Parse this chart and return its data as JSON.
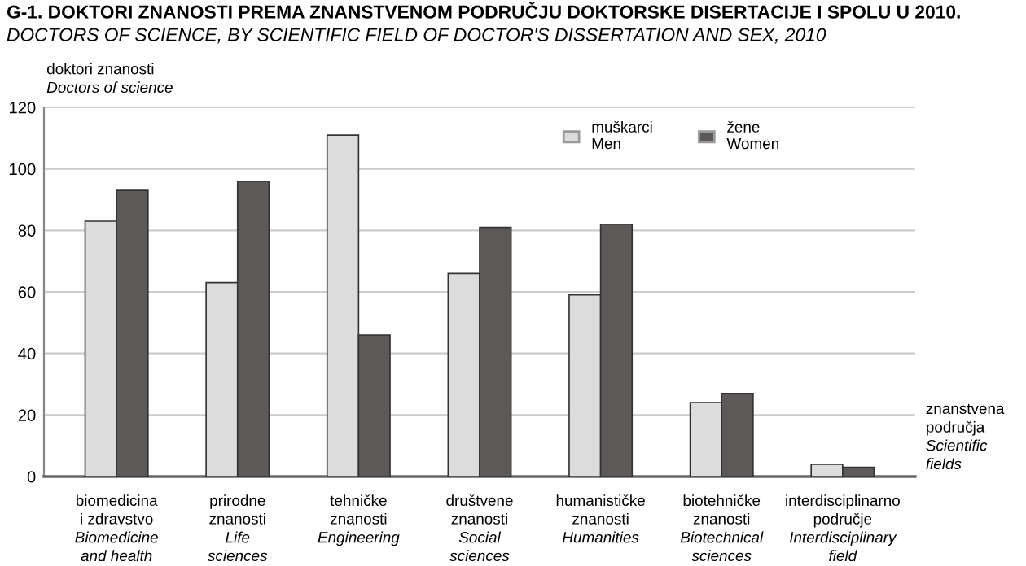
{
  "chart_data": {
    "type": "bar",
    "title": "G-1. DOKTORI ZNANOSTI PREMA ZNANSTVENOM PODRUČJU DOKTORSKE DISERTACIJE I SPOLU U 2010.",
    "subtitle": "DOCTORS OF SCIENCE, BY SCIENTIFIC FIELD OF DOCTOR'S DISSERTATION AND SEX, 2010",
    "ylabel": "doktori znanosti\nDoctors of science",
    "xlabel": "znanstvena\npodručja\nScientific\nfields",
    "categories": [
      "biomedicina\ni zdravstvo\nBiomedicine\nand health",
      "prirodne\nznanosti\nLife\nsciences",
      "tehničke\nznanosti\nEngineering",
      "društvene\nznanosti\nSocial\nsciences",
      "humanističke\nznanosti\nHumanities",
      "biotehničke\nznanosti\nBiotechnical\nsciences",
      "interdisciplinarno\npodručje\nInterdisciplinary\nfield"
    ],
    "series": [
      {
        "name": "muškarci\nMen",
        "color": "#dcdcdc",
        "values": [
          83,
          63,
          111,
          66,
          59,
          24,
          4
        ]
      },
      {
        "name": "žene\nWomen",
        "color": "#5d5959",
        "values": [
          93,
          96,
          46,
          81,
          82,
          27,
          3
        ]
      }
    ],
    "ylim": [
      0,
      120
    ],
    "yticks": [
      0,
      20,
      40,
      60,
      80,
      100,
      120
    ],
    "grid": "y",
    "legend": "top right"
  }
}
